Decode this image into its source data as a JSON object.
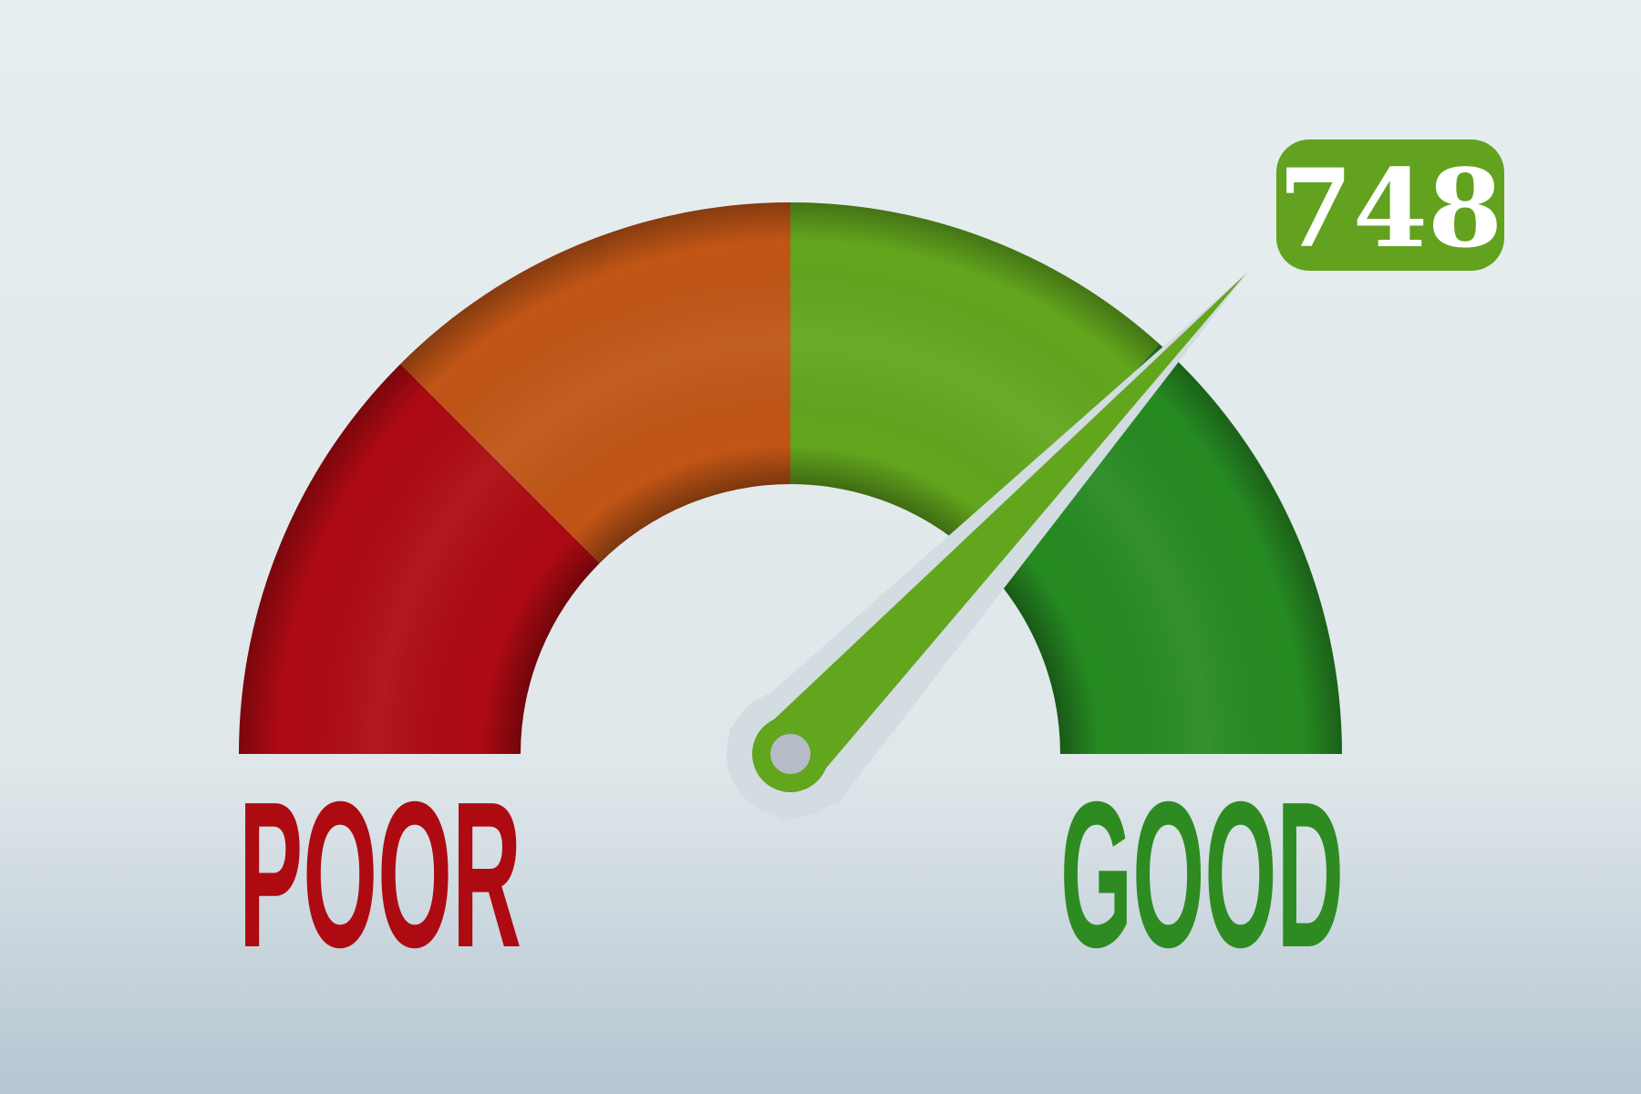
{
  "gauge": {
    "score": "748",
    "low_label": "POOR",
    "high_label": "GOOD",
    "colors": {
      "poor": "#ad0a12",
      "fair": "#c05516",
      "good": "#62a61e",
      "excellent": "#268a22",
      "badge": "#62a21e",
      "poor_text": "#ad0a12",
      "good_text": "#2e8b22"
    }
  }
}
